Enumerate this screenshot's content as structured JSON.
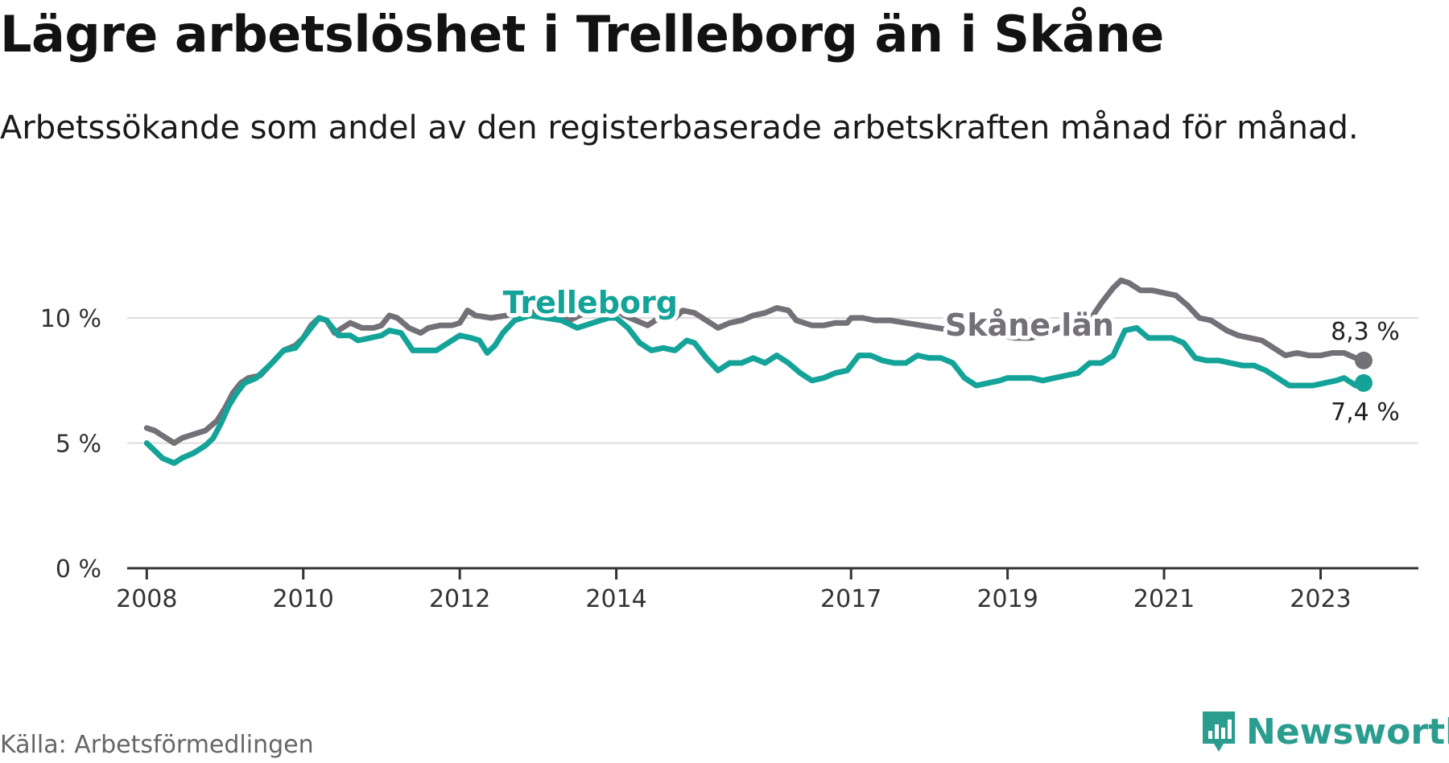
{
  "title": "Lägre arbetslöshet i Trelleborg än i Skåne",
  "subtitle": "Arbetssökande som andel av den registerbaserade arbetskraften månad för månad.",
  "source": "Källa: Arbetsförmedlingen",
  "brand": {
    "name": "Newsworthy",
    "color": "#2a9d8f",
    "icon": "newsworthy-logo-icon"
  },
  "chart_data": {
    "type": "line",
    "x_unit": "year",
    "ylim": [
      0,
      12
    ],
    "xlim": [
      2007.75,
      2024.25
    ],
    "y_ticks": [
      {
        "value": 0,
        "label": "0 %"
      },
      {
        "value": 5,
        "label": "5 %"
      },
      {
        "value": 10,
        "label": "10 %"
      }
    ],
    "x_ticks": [
      {
        "value": 2008,
        "label": "2008"
      },
      {
        "value": 2010,
        "label": "2010"
      },
      {
        "value": 2012,
        "label": "2012"
      },
      {
        "value": 2014,
        "label": "2014"
      },
      {
        "value": 2017,
        "label": "2017"
      },
      {
        "value": 2019,
        "label": "2019"
      },
      {
        "value": 2021,
        "label": "2021"
      },
      {
        "value": 2023,
        "label": "2023"
      }
    ],
    "grid": true,
    "series": [
      {
        "name": "Skåne län",
        "color": "#737077",
        "label": {
          "text": "Skåne län",
          "x": 2018.2,
          "y": 9.3
        },
        "end_label": "8,3 %",
        "points": [
          [
            2008.0,
            5.6
          ],
          [
            2008.1,
            5.5
          ],
          [
            2008.2,
            5.3
          ],
          [
            2008.35,
            5.0
          ],
          [
            2008.45,
            5.2
          ],
          [
            2008.6,
            5.35
          ],
          [
            2008.75,
            5.5
          ],
          [
            2008.9,
            5.9
          ],
          [
            2009.0,
            6.4
          ],
          [
            2009.1,
            7.0
          ],
          [
            2009.2,
            7.4
          ],
          [
            2009.3,
            7.6
          ],
          [
            2009.45,
            7.7
          ],
          [
            2009.6,
            8.2
          ],
          [
            2009.75,
            8.7
          ],
          [
            2009.9,
            8.9
          ],
          [
            2010.0,
            9.2
          ],
          [
            2010.1,
            9.7
          ],
          [
            2010.2,
            10.0
          ],
          [
            2010.3,
            9.9
          ],
          [
            2010.4,
            9.4
          ],
          [
            2010.5,
            9.6
          ],
          [
            2010.6,
            9.8
          ],
          [
            2010.75,
            9.6
          ],
          [
            2010.9,
            9.6
          ],
          [
            2011.0,
            9.7
          ],
          [
            2011.1,
            10.1
          ],
          [
            2011.2,
            10.0
          ],
          [
            2011.35,
            9.6
          ],
          [
            2011.5,
            9.4
          ],
          [
            2011.6,
            9.6
          ],
          [
            2011.75,
            9.7
          ],
          [
            2011.9,
            9.7
          ],
          [
            2012.0,
            9.8
          ],
          [
            2012.1,
            10.3
          ],
          [
            2012.2,
            10.1
          ],
          [
            2012.4,
            10.0
          ],
          [
            2012.6,
            10.1
          ],
          [
            2012.8,
            10.3
          ],
          [
            2013.0,
            10.2
          ],
          [
            2013.2,
            10.1
          ],
          [
            2013.4,
            9.9
          ],
          [
            2013.6,
            10.2
          ],
          [
            2013.8,
            10.3
          ],
          [
            2013.95,
            10.4
          ],
          [
            2014.1,
            10.1
          ],
          [
            2014.25,
            9.9
          ],
          [
            2014.4,
            9.7
          ],
          [
            2014.5,
            9.9
          ],
          [
            2014.6,
            10.0
          ],
          [
            2014.75,
            10.0
          ],
          [
            2014.85,
            10.3
          ],
          [
            2015.0,
            10.2
          ],
          [
            2015.15,
            9.9
          ],
          [
            2015.3,
            9.6
          ],
          [
            2015.45,
            9.8
          ],
          [
            2015.6,
            9.9
          ],
          [
            2015.75,
            10.1
          ],
          [
            2015.9,
            10.2
          ],
          [
            2016.05,
            10.4
          ],
          [
            2016.2,
            10.3
          ],
          [
            2016.3,
            9.9
          ],
          [
            2016.5,
            9.7
          ],
          [
            2016.65,
            9.7
          ],
          [
            2016.8,
            9.8
          ],
          [
            2016.95,
            9.8
          ],
          [
            2017.0,
            10.0
          ],
          [
            2017.15,
            10.0
          ],
          [
            2017.3,
            9.9
          ],
          [
            2017.5,
            9.9
          ],
          [
            2017.7,
            9.8
          ],
          [
            2017.9,
            9.7
          ],
          [
            2018.1,
            9.6
          ],
          [
            2018.3,
            9.5
          ],
          [
            2018.5,
            9.4
          ],
          [
            2018.7,
            9.3
          ],
          [
            2018.9,
            9.3
          ],
          [
            2019.1,
            9.2
          ],
          [
            2019.3,
            9.2
          ],
          [
            2019.5,
            9.4
          ],
          [
            2019.65,
            9.6
          ],
          [
            2019.8,
            9.8
          ],
          [
            2019.95,
            9.7
          ],
          [
            2020.05,
            9.9
          ],
          [
            2020.2,
            10.6
          ],
          [
            2020.35,
            11.2
          ],
          [
            2020.45,
            11.5
          ],
          [
            2020.55,
            11.4
          ],
          [
            2020.7,
            11.1
          ],
          [
            2020.85,
            11.1
          ],
          [
            2021.0,
            11.0
          ],
          [
            2021.15,
            10.9
          ],
          [
            2021.3,
            10.5
          ],
          [
            2021.45,
            10.0
          ],
          [
            2021.6,
            9.9
          ],
          [
            2021.8,
            9.5
          ],
          [
            2021.95,
            9.3
          ],
          [
            2022.1,
            9.2
          ],
          [
            2022.25,
            9.1
          ],
          [
            2022.4,
            8.8
          ],
          [
            2022.55,
            8.5
          ],
          [
            2022.7,
            8.6
          ],
          [
            2022.85,
            8.5
          ],
          [
            2023.0,
            8.5
          ],
          [
            2023.15,
            8.6
          ],
          [
            2023.3,
            8.6
          ],
          [
            2023.45,
            8.4
          ],
          [
            2023.55,
            8.3
          ]
        ]
      },
      {
        "name": "Trelleborg",
        "color": "#14a398",
        "label": {
          "text": "Trelleborg",
          "x": 2012.55,
          "y": 10.2
        },
        "end_label": "7,4 %",
        "points": [
          [
            2008.0,
            5.0
          ],
          [
            2008.1,
            4.7
          ],
          [
            2008.2,
            4.4
          ],
          [
            2008.35,
            4.2
          ],
          [
            2008.45,
            4.4
          ],
          [
            2008.6,
            4.6
          ],
          [
            2008.75,
            4.9
          ],
          [
            2008.85,
            5.2
          ],
          [
            2008.95,
            5.8
          ],
          [
            2009.05,
            6.5
          ],
          [
            2009.15,
            7.0
          ],
          [
            2009.25,
            7.4
          ],
          [
            2009.4,
            7.6
          ],
          [
            2009.6,
            8.2
          ],
          [
            2009.75,
            8.7
          ],
          [
            2009.9,
            8.8
          ],
          [
            2010.0,
            9.2
          ],
          [
            2010.1,
            9.6
          ],
          [
            2010.2,
            10.0
          ],
          [
            2010.3,
            9.9
          ],
          [
            2010.45,
            9.3
          ],
          [
            2010.6,
            9.3
          ],
          [
            2010.7,
            9.1
          ],
          [
            2010.85,
            9.2
          ],
          [
            2011.0,
            9.3
          ],
          [
            2011.1,
            9.5
          ],
          [
            2011.25,
            9.4
          ],
          [
            2011.4,
            8.7
          ],
          [
            2011.55,
            8.7
          ],
          [
            2011.7,
            8.7
          ],
          [
            2011.85,
            9.0
          ],
          [
            2012.0,
            9.3
          ],
          [
            2012.15,
            9.2
          ],
          [
            2012.25,
            9.1
          ],
          [
            2012.35,
            8.6
          ],
          [
            2012.45,
            8.9
          ],
          [
            2012.55,
            9.4
          ],
          [
            2012.7,
            9.9
          ],
          [
            2012.9,
            10.1
          ],
          [
            2013.1,
            10.0
          ],
          [
            2013.3,
            9.9
          ],
          [
            2013.5,
            9.6
          ],
          [
            2013.7,
            9.8
          ],
          [
            2013.9,
            10.0
          ],
          [
            2014.0,
            10.0
          ],
          [
            2014.15,
            9.6
          ],
          [
            2014.3,
            9.0
          ],
          [
            2014.45,
            8.7
          ],
          [
            2014.6,
            8.8
          ],
          [
            2014.75,
            8.7
          ],
          [
            2014.9,
            9.1
          ],
          [
            2015.0,
            9.0
          ],
          [
            2015.15,
            8.4
          ],
          [
            2015.3,
            7.9
          ],
          [
            2015.45,
            8.2
          ],
          [
            2015.6,
            8.2
          ],
          [
            2015.75,
            8.4
          ],
          [
            2015.9,
            8.2
          ],
          [
            2016.05,
            8.5
          ],
          [
            2016.2,
            8.2
          ],
          [
            2016.35,
            7.8
          ],
          [
            2016.5,
            7.5
          ],
          [
            2016.65,
            7.6
          ],
          [
            2016.8,
            7.8
          ],
          [
            2016.95,
            7.9
          ],
          [
            2017.1,
            8.5
          ],
          [
            2017.25,
            8.5
          ],
          [
            2017.4,
            8.3
          ],
          [
            2017.55,
            8.2
          ],
          [
            2017.7,
            8.2
          ],
          [
            2017.85,
            8.5
          ],
          [
            2018.0,
            8.4
          ],
          [
            2018.15,
            8.4
          ],
          [
            2018.3,
            8.2
          ],
          [
            2018.45,
            7.6
          ],
          [
            2018.6,
            7.3
          ],
          [
            2018.75,
            7.4
          ],
          [
            2018.9,
            7.5
          ],
          [
            2019.0,
            7.6
          ],
          [
            2019.15,
            7.6
          ],
          [
            2019.3,
            7.6
          ],
          [
            2019.45,
            7.5
          ],
          [
            2019.6,
            7.6
          ],
          [
            2019.75,
            7.7
          ],
          [
            2019.9,
            7.8
          ],
          [
            2020.05,
            8.2
          ],
          [
            2020.2,
            8.2
          ],
          [
            2020.35,
            8.5
          ],
          [
            2020.5,
            9.5
          ],
          [
            2020.65,
            9.6
          ],
          [
            2020.8,
            9.2
          ],
          [
            2020.95,
            9.2
          ],
          [
            2021.1,
            9.2
          ],
          [
            2021.25,
            9.0
          ],
          [
            2021.4,
            8.4
          ],
          [
            2021.55,
            8.3
          ],
          [
            2021.7,
            8.3
          ],
          [
            2021.85,
            8.2
          ],
          [
            2022.0,
            8.1
          ],
          [
            2022.15,
            8.1
          ],
          [
            2022.3,
            7.9
          ],
          [
            2022.45,
            7.6
          ],
          [
            2022.6,
            7.3
          ],
          [
            2022.75,
            7.3
          ],
          [
            2022.9,
            7.3
          ],
          [
            2023.05,
            7.4
          ],
          [
            2023.2,
            7.5
          ],
          [
            2023.3,
            7.6
          ],
          [
            2023.45,
            7.3
          ],
          [
            2023.55,
            7.4
          ]
        ]
      }
    ]
  }
}
